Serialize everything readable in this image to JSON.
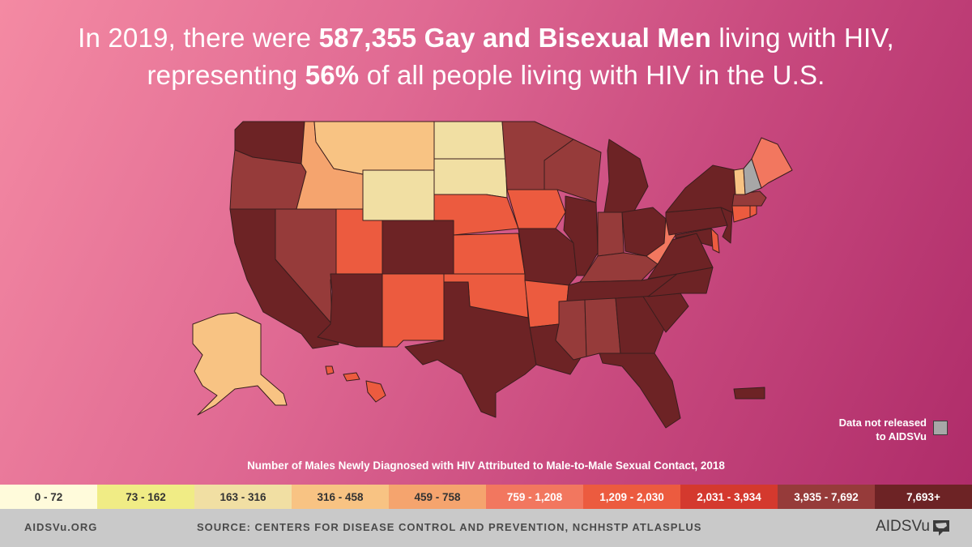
{
  "headline": {
    "line1_pre": "In 2019, there were ",
    "line1_bold": "587,355 Gay and Bisexual Men",
    "line1_post": " living with HIV,",
    "line2_pre": "representing ",
    "line2_bold": "56%",
    "line2_post": " of all people living with HIV in the U.S."
  },
  "map": {
    "title": "Number of Males Newly Diagnosed with HIV Attributed to Male-to-Male Sexual Contact, 2018",
    "no_data_line1": "Data not released",
    "no_data_line2": "to AIDSVu",
    "no_data_color": "#a7a7a7",
    "legend_bins": [
      {
        "label": "0 - 72",
        "color": "#fffbdb",
        "text_color": "#333333"
      },
      {
        "label": "73 - 162",
        "color": "#f0ec85",
        "text_color": "#333333"
      },
      {
        "label": "163 - 316",
        "color": "#f1dfa3",
        "text_color": "#333333"
      },
      {
        "label": "316 - 458",
        "color": "#f8c383",
        "text_color": "#333333"
      },
      {
        "label": "459 - 758",
        "color": "#f5a46e",
        "text_color": "#333333"
      },
      {
        "label": "759 - 1,208",
        "color": "#f2775f",
        "text_color": "#ffffff"
      },
      {
        "label": "1,209 - 2,030",
        "color": "#ec5b3f",
        "text_color": "#ffffff"
      },
      {
        "label": "2,031 - 3,934",
        "color": "#d4392e",
        "text_color": "#ffffff"
      },
      {
        "label": "3,935 - 7,692",
        "color": "#963b3a",
        "text_color": "#ffffff"
      },
      {
        "label": "7,693+",
        "color": "#6d2325",
        "text_color": "#ffffff"
      }
    ],
    "state_bins": {
      "WA": 9,
      "OR": 8,
      "CA": 9,
      "NV": 8,
      "ID": 4,
      "MT": 3,
      "WY": 2,
      "UT": 6,
      "AZ": 9,
      "CO": 9,
      "NM": 6,
      "ND": 2,
      "SD": 2,
      "NE": 6,
      "KS": 6,
      "OK": 6,
      "TX": 9,
      "MN": 8,
      "IA": 6,
      "MO": 9,
      "AR": 6,
      "LA": 9,
      "WI": 8,
      "IL": 9,
      "MI": 9,
      "IN": 8,
      "OH": 9,
      "KY": 8,
      "TN": 9,
      "MS": 8,
      "AL": 8,
      "GA": 9,
      "FL": 9,
      "SC": 9,
      "NC": 9,
      "VA": 9,
      "WV": 5,
      "PA": 9,
      "NY": 9,
      "ME": 5,
      "VT": 3,
      "NH": -1,
      "MA": 8,
      "CT": 6,
      "RI": 6,
      "NJ": 9,
      "DE": 6,
      "MD": 9,
      "AK": 3,
      "HI": 6,
      "PR": 9
    }
  },
  "footer": {
    "site": "AIDSVu.ORG",
    "source": "SOURCE: CENTERS FOR DISEASE CONTROL AND PREVENTION, NCHHSTP ATLASPLUS",
    "brand": "AIDSVu",
    "brand_icon": "us-map-chat-icon"
  }
}
